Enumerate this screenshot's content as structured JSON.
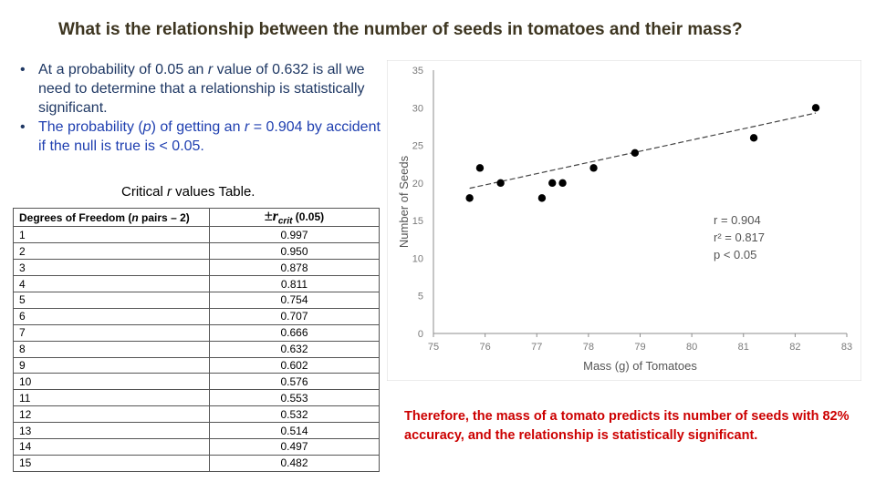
{
  "title": "What is the relationship between the number of seeds in tomatoes and their mass?",
  "bullets": [
    {
      "pre": "At a probability of 0.05 an ",
      "em": "r",
      "post": " value of 0.632 is all we need to determine that a relationship is statistically significant."
    },
    {
      "pre": "The probability (",
      "em": "p",
      "mid": ") of getting an ",
      "em2": "r",
      "post": " = 0.904 by accident if the null is true is < 0.05."
    }
  ],
  "bullet_marker": "•",
  "table": {
    "caption_pre": "Critical ",
    "caption_em": "r",
    "caption_post": " values Table.",
    "header_col1": "Degrees of Freedom (",
    "header_col1_em": "n",
    "header_col1_post": " pairs – 2)",
    "header_col2_symbol": "±",
    "header_col2_r": "r",
    "header_col2_sub": "crit",
    "header_col2_post": " (0.05)",
    "rows": [
      {
        "df": "1",
        "r": "0.997"
      },
      {
        "df": "2",
        "r": "0.950"
      },
      {
        "df": "3",
        "r": "0.878"
      },
      {
        "df": "4",
        "r": "0.811"
      },
      {
        "df": "5",
        "r": "0.754"
      },
      {
        "df": "6",
        "r": "0.707"
      },
      {
        "df": "7",
        "r": "0.666"
      },
      {
        "df": "8",
        "r": "0.632"
      },
      {
        "df": "9",
        "r": "0.602"
      },
      {
        "df": "10",
        "r": "0.576"
      },
      {
        "df": "11",
        "r": "0.553"
      },
      {
        "df": "12",
        "r": "0.532"
      },
      {
        "df": "13",
        "r": "0.514"
      },
      {
        "df": "14",
        "r": "0.497"
      },
      {
        "df": "15",
        "r": "0.482"
      }
    ]
  },
  "chart_data": {
    "type": "scatter",
    "title": "",
    "xlabel": "Mass (g) of Tomatoes",
    "ylabel": "Number of Seeds",
    "xlim": [
      75,
      83
    ],
    "ylim": [
      0,
      35
    ],
    "xticks": [
      75,
      76,
      77,
      78,
      79,
      80,
      81,
      82,
      83
    ],
    "yticks": [
      0,
      5,
      10,
      15,
      20,
      25,
      30,
      35
    ],
    "points": [
      {
        "x": 75.7,
        "y": 18
      },
      {
        "x": 75.9,
        "y": 22
      },
      {
        "x": 76.3,
        "y": 20
      },
      {
        "x": 77.1,
        "y": 18
      },
      {
        "x": 77.3,
        "y": 20
      },
      {
        "x": 77.5,
        "y": 20
      },
      {
        "x": 78.1,
        "y": 22
      },
      {
        "x": 78.9,
        "y": 24
      },
      {
        "x": 81.2,
        "y": 26
      },
      {
        "x": 82.4,
        "y": 30
      }
    ],
    "trendline": {
      "x": [
        75.7,
        82.4
      ],
      "y": [
        19.3,
        29.3
      ]
    },
    "stats": [
      {
        "label": "r =",
        "value": "0.904"
      },
      {
        "label": "r² =",
        "value": "0.817"
      },
      {
        "label": "p <",
        "value": "0.05"
      }
    ]
  },
  "conclusion": "Therefore, the mass of a tomato predicts its number of seeds with 82% accuracy, and the relationship is statistically significant.",
  "colors": {
    "title": "#3d3520",
    "bullet1": "#1f3864",
    "bullet2": "#1f3fb0",
    "conclusion": "#cc0000",
    "axis_text": "#7a7a7a",
    "stats_text": "#555555"
  }
}
